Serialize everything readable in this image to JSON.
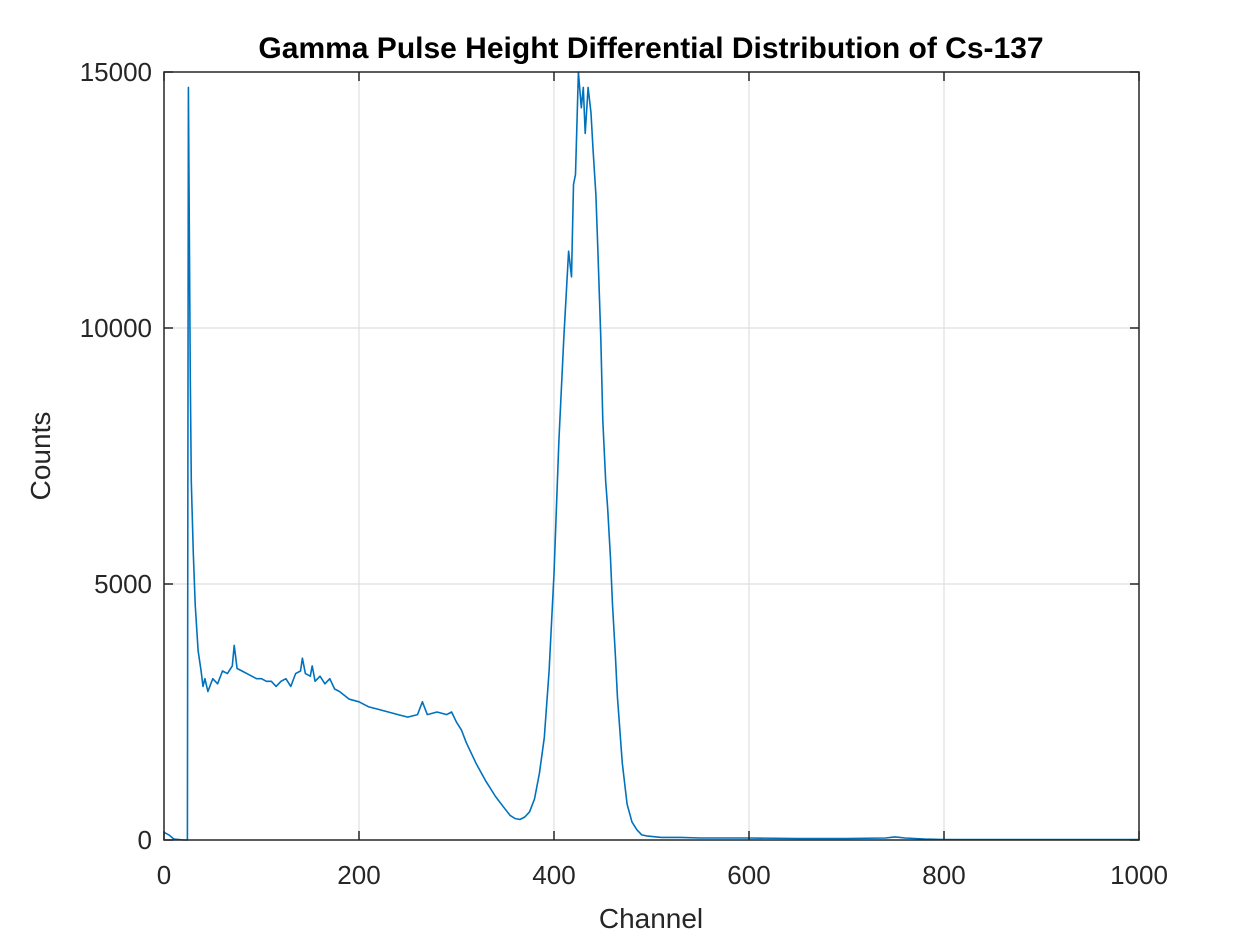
{
  "chart_data": {
    "type": "line",
    "title": "Gamma Pulse Height Differential Distribution of Cs-137",
    "xlabel": "Channel",
    "ylabel": "Counts",
    "xlim": [
      0,
      1000
    ],
    "ylim": [
      0,
      15000
    ],
    "xticks": [
      0,
      200,
      400,
      600,
      800,
      1000
    ],
    "yticks": [
      0,
      5000,
      10000,
      15000
    ],
    "xtick_labels": [
      "0",
      "200",
      "400",
      "600",
      "800",
      "1000"
    ],
    "ytick_labels": [
      "0",
      "5000",
      "10000",
      "15000"
    ],
    "grid": true,
    "line_color": "#0072BD",
    "series": [
      {
        "x": [
          0,
          5,
          10,
          15,
          20,
          24,
          25,
          26,
          27,
          28,
          30,
          32,
          35,
          38,
          40,
          42,
          45,
          48,
          50,
          55,
          60,
          65,
          70,
          72,
          75,
          80,
          85,
          90,
          95,
          100,
          105,
          110,
          115,
          120,
          125,
          130,
          135,
          140,
          142,
          145,
          150,
          152,
          155,
          160,
          165,
          170,
          175,
          180,
          190,
          200,
          210,
          220,
          230,
          240,
          250,
          260,
          265,
          270,
          280,
          290,
          295,
          300,
          305,
          310,
          320,
          330,
          340,
          350,
          355,
          360,
          365,
          370,
          375,
          380,
          385,
          390,
          395,
          400,
          405,
          410,
          415,
          418,
          420,
          422,
          425,
          428,
          430,
          432,
          435,
          438,
          440,
          443,
          445,
          448,
          450,
          453,
          455,
          458,
          460,
          463,
          465,
          470,
          475,
          480,
          485,
          490,
          495,
          500,
          505,
          510,
          520,
          530,
          550,
          600,
          650,
          700,
          740,
          750,
          760,
          780,
          800,
          850,
          900,
          950,
          1000
        ],
        "y": [
          150,
          100,
          20,
          10,
          0,
          0,
          14700,
          12000,
          9000,
          7000,
          5600,
          4600,
          3700,
          3300,
          3000,
          3150,
          2900,
          3050,
          3150,
          3050,
          3300,
          3250,
          3400,
          3800,
          3350,
          3300,
          3250,
          3200,
          3150,
          3150,
          3100,
          3100,
          3000,
          3100,
          3150,
          3000,
          3250,
          3300,
          3550,
          3250,
          3200,
          3400,
          3100,
          3200,
          3050,
          3150,
          2950,
          2900,
          2750,
          2700,
          2600,
          2550,
          2500,
          2450,
          2400,
          2450,
          2700,
          2450,
          2500,
          2450,
          2500,
          2300,
          2150,
          1900,
          1500,
          1150,
          850,
          600,
          480,
          420,
          400,
          450,
          550,
          800,
          1300,
          2000,
          3300,
          5200,
          7800,
          9800,
          11500,
          11000,
          12800,
          13000,
          15000,
          14300,
          14700,
          13800,
          14700,
          14200,
          13500,
          12600,
          11500,
          9800,
          8200,
          7000,
          6500,
          5500,
          4600,
          3600,
          2800,
          1500,
          700,
          350,
          200,
          100,
          80,
          70,
          60,
          50,
          50,
          50,
          40,
          40,
          30,
          30,
          40,
          60,
          40,
          20,
          10,
          10,
          10,
          10,
          10
        ]
      }
    ]
  }
}
